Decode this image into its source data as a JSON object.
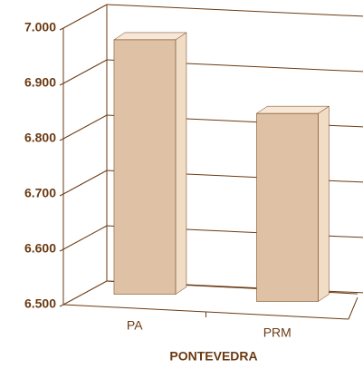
{
  "chart_data": {
    "type": "bar3d",
    "x_label": "PONTEVEDRA",
    "categories": [
      "PA",
      "PRM"
    ],
    "values": [
      6960,
      6840
    ],
    "color": "#dfc2a5",
    "ylim": [
      6500,
      7000
    ],
    "yticks": [
      {
        "value": 6500,
        "label": "6.500"
      },
      {
        "value": 6600,
        "label": "6.600"
      },
      {
        "value": 6700,
        "label": "6.700"
      },
      {
        "value": 6800,
        "label": "6.800"
      },
      {
        "value": 6900,
        "label": "6.900"
      },
      {
        "value": 7000,
        "label": "7.000"
      }
    ],
    "grid": true
  }
}
